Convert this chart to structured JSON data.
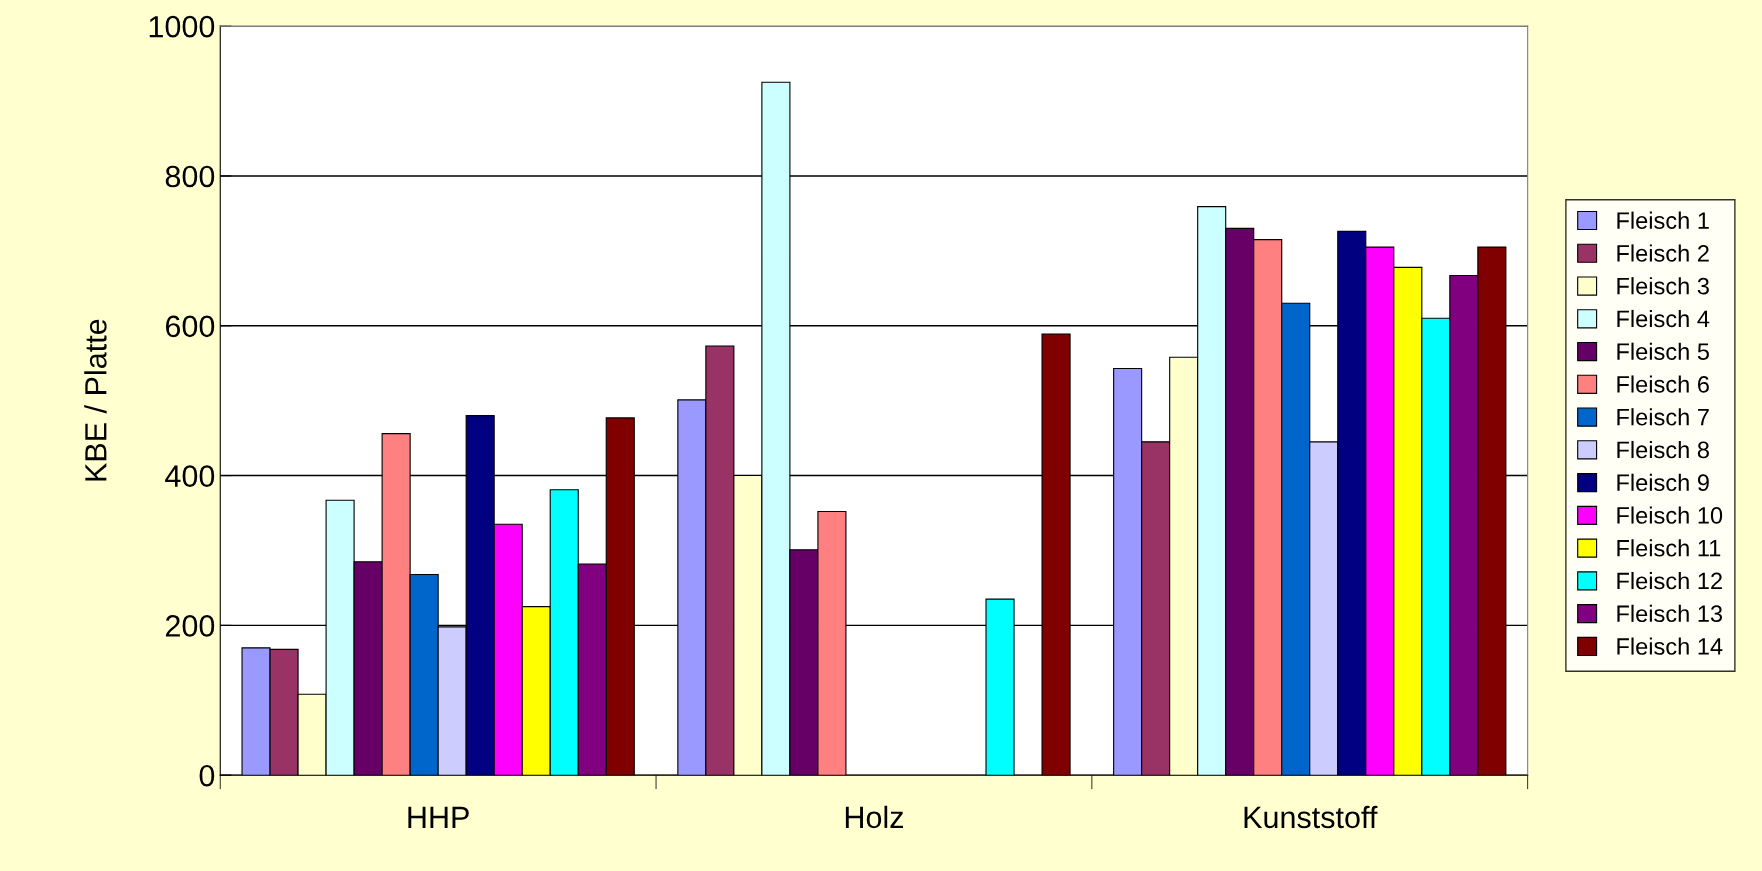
{
  "chart_data": {
    "type": "bar",
    "ylabel": "KBE / Platte",
    "categories": [
      "HHP",
      "Holz",
      "Kunststoff"
    ],
    "ylim": [
      0,
      1000
    ],
    "yticks": [
      0,
      200,
      400,
      600,
      800,
      1000
    ],
    "grid": "y",
    "legend": "right",
    "series": [
      {
        "name": "Fleisch 1",
        "color": "#9999ff",
        "values": [
          170,
          501,
          543
        ]
      },
      {
        "name": "Fleisch 2",
        "color": "#993366",
        "values": [
          168,
          573,
          445
        ]
      },
      {
        "name": "Fleisch 3",
        "color": "#ffffcc",
        "values": [
          108,
          400,
          558
        ]
      },
      {
        "name": "Fleisch 4",
        "color": "#ccffff",
        "values": [
          367,
          925,
          759
        ]
      },
      {
        "name": "Fleisch 5",
        "color": "#660066",
        "values": [
          285,
          301,
          730
        ]
      },
      {
        "name": "Fleisch 6",
        "color": "#ff8080",
        "values": [
          456,
          352,
          715
        ]
      },
      {
        "name": "Fleisch 7",
        "color": "#0066cc",
        "values": [
          268,
          null,
          630
        ]
      },
      {
        "name": "Fleisch 8",
        "color": "#ccccff",
        "values": [
          198,
          null,
          445
        ]
      },
      {
        "name": "Fleisch 9",
        "color": "#000080",
        "values": [
          480,
          null,
          726
        ]
      },
      {
        "name": "Fleisch 10",
        "color": "#ff00ff",
        "values": [
          335,
          null,
          705
        ]
      },
      {
        "name": "Fleisch 11",
        "color": "#ffff00",
        "values": [
          225,
          null,
          678
        ]
      },
      {
        "name": "Fleisch 12",
        "color": "#00ffff",
        "values": [
          381,
          235,
          610
        ]
      },
      {
        "name": "Fleisch 13",
        "color": "#800080",
        "values": [
          282,
          null,
          667
        ]
      },
      {
        "name": "Fleisch 14",
        "color": "#800000",
        "values": [
          477,
          589,
          705
        ]
      }
    ]
  }
}
